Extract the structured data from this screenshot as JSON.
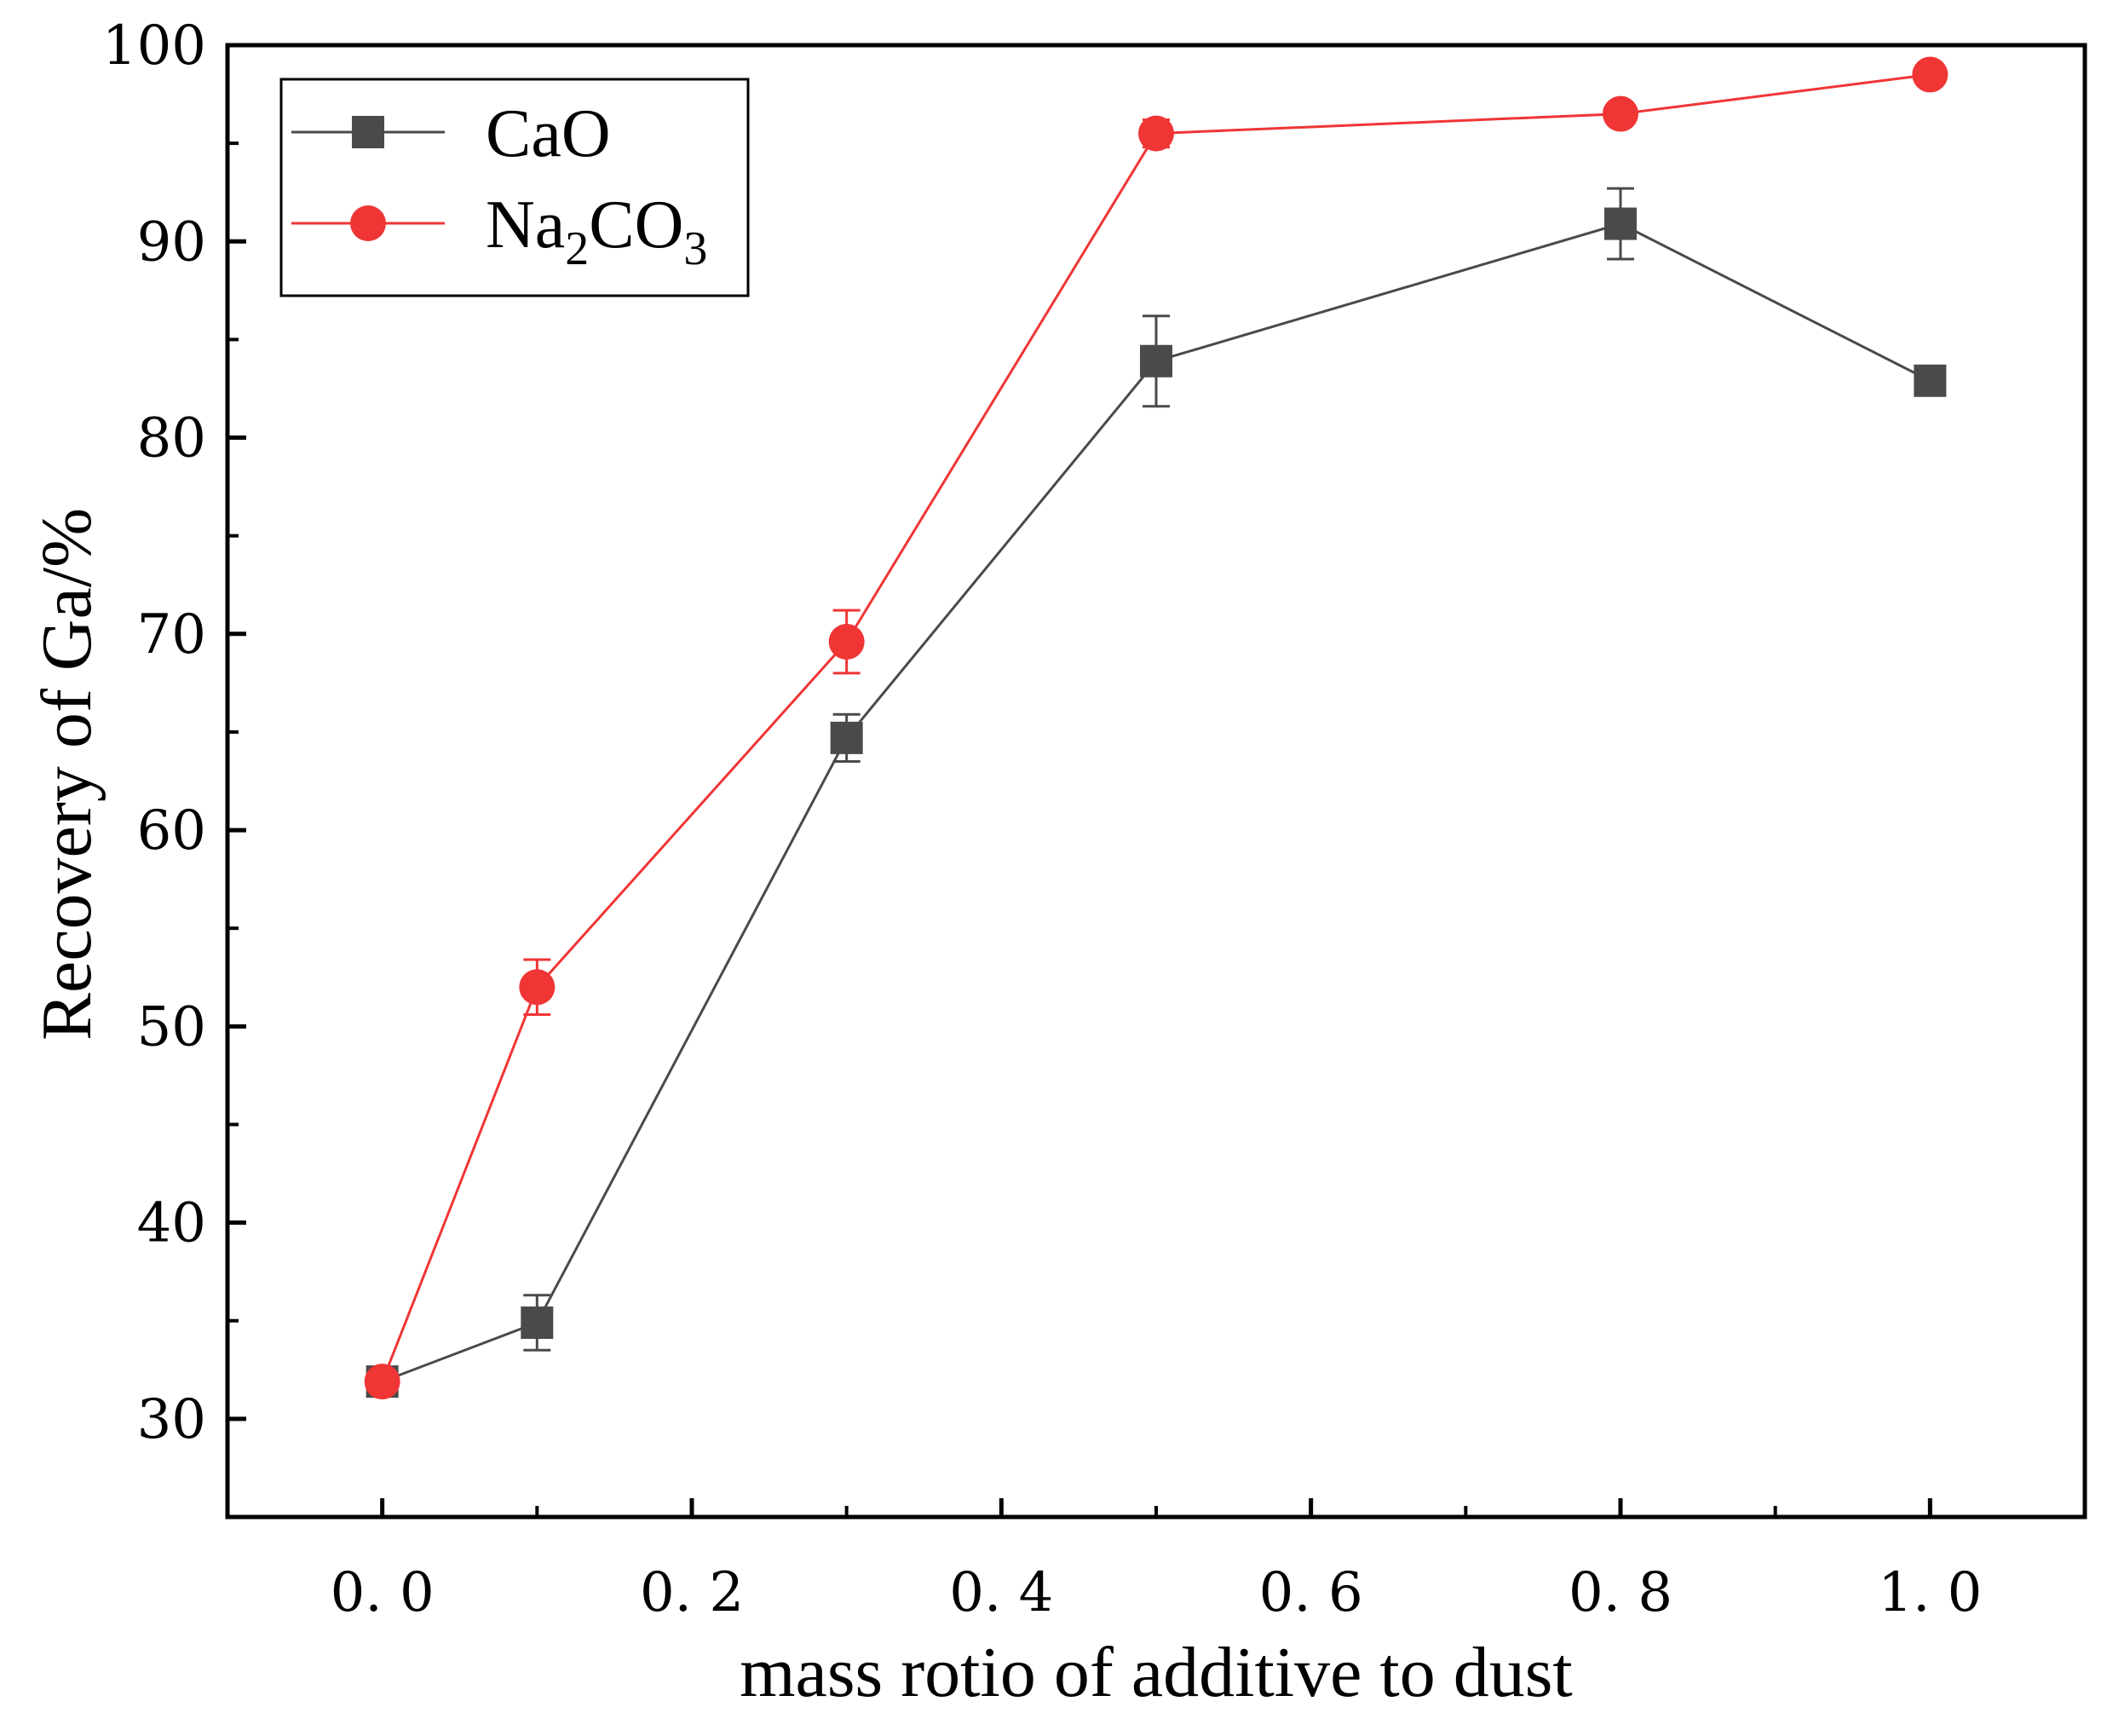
{
  "chart_data": {
    "type": "line",
    "title": "",
    "xlabel": "mass rotio of additive to dust",
    "ylabel": "Recovery of Ga/%",
    "xlim": [
      -0.1,
      1.1
    ],
    "ylim": [
      25,
      100
    ],
    "x_ticks": [
      0.0,
      0.2,
      0.4,
      0.6,
      0.8,
      1.0
    ],
    "x_tick_labels": [
      "0. 0",
      "0. 2",
      "0. 4",
      "0. 6",
      "0. 8",
      "1. 0"
    ],
    "x_minor_ticks": [
      0.1,
      0.3,
      0.5,
      0.7,
      0.9
    ],
    "y_ticks": [
      30,
      40,
      50,
      60,
      70,
      80,
      90,
      100
    ],
    "y_tick_labels": [
      "30",
      "40",
      "50",
      "60",
      "70",
      "80",
      "90",
      "100"
    ],
    "y_minor_ticks": [
      35,
      45,
      55,
      65,
      75,
      85,
      95
    ],
    "grid": false,
    "legend_position": "top-left",
    "series": [
      {
        "name": "CaO",
        "legend_main": "CaO",
        "legend_sub1": "",
        "legend_mid": "",
        "legend_sub2": "",
        "color": "#4a4a4a",
        "marker": "square",
        "x": [
          0.0,
          0.1,
          0.3,
          0.5,
          0.8,
          1.0
        ],
        "y": [
          31.9,
          34.9,
          64.7,
          83.9,
          90.9,
          82.9
        ],
        "error": [
          0.4,
          1.4,
          1.2,
          2.3,
          1.8,
          0.3
        ]
      },
      {
        "name": "Na2CO3",
        "legend_main": "Na",
        "legend_sub1": "2",
        "legend_mid": "CO",
        "legend_sub2": "3",
        "color": "#f03535",
        "marker": "circle",
        "x": [
          0.0,
          0.1,
          0.3,
          0.5,
          0.8,
          1.0
        ],
        "y": [
          31.9,
          52.0,
          69.6,
          95.5,
          96.5,
          98.5
        ],
        "error": [
          0.3,
          1.4,
          1.6,
          0.7,
          0.3,
          0.3
        ]
      }
    ]
  }
}
